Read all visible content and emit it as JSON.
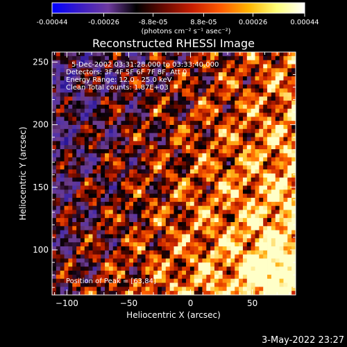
{
  "colorbar": {
    "tick_labels": [
      "-0.00044",
      "-0.00026",
      "-8.8e-05",
      "8.8e-05",
      "0.00026",
      "0.00044"
    ],
    "tick_values": [
      -0.00044,
      -0.00026,
      -8.8e-05,
      8.8e-05,
      0.00026,
      0.00044
    ],
    "range": [
      -0.00044,
      0.00044
    ],
    "unit_label": "(photons cm⁻² s⁻¹ asec⁻²)",
    "colors": [
      "#0000ff",
      "#3a1cc6",
      "#6e3aa0",
      "#000000",
      "#6a0a00",
      "#c81e00",
      "#ff5a00",
      "#ffb400",
      "#ffff78",
      "#ffffff"
    ]
  },
  "chart_data": {
    "type": "heatmap",
    "title": "Reconstructed RHESSI Image",
    "xlabel": "Heliocentric X (arcsec)",
    "ylabel": "Heliocentric Y (arcsec)",
    "xlim": [
      -112,
      85
    ],
    "ylim": [
      64,
      258
    ],
    "xticks": [
      -100,
      -50,
      0,
      50
    ],
    "yticks": [
      100,
      150,
      200,
      250
    ],
    "xtick_labels": [
      "−100",
      "−50",
      "0",
      "50"
    ],
    "ytick_labels": [
      "100",
      "150",
      "200",
      "250"
    ],
    "annotations": [
      "5-Dec-2002 03:31:28.000 to 03:33:40.000",
      "Detectors: 3F 4F 5F 6F 7F 8F, Att 0",
      "Energy Range: 12.0 - 25.0 keV",
      "Clean     Total counts: 1.87E+03"
    ],
    "peak_text": "Position of Peak = [63,84]",
    "peak": [
      63,
      84
    ]
  },
  "footer": {
    "timestamp": "3-May-2022 23:27"
  }
}
